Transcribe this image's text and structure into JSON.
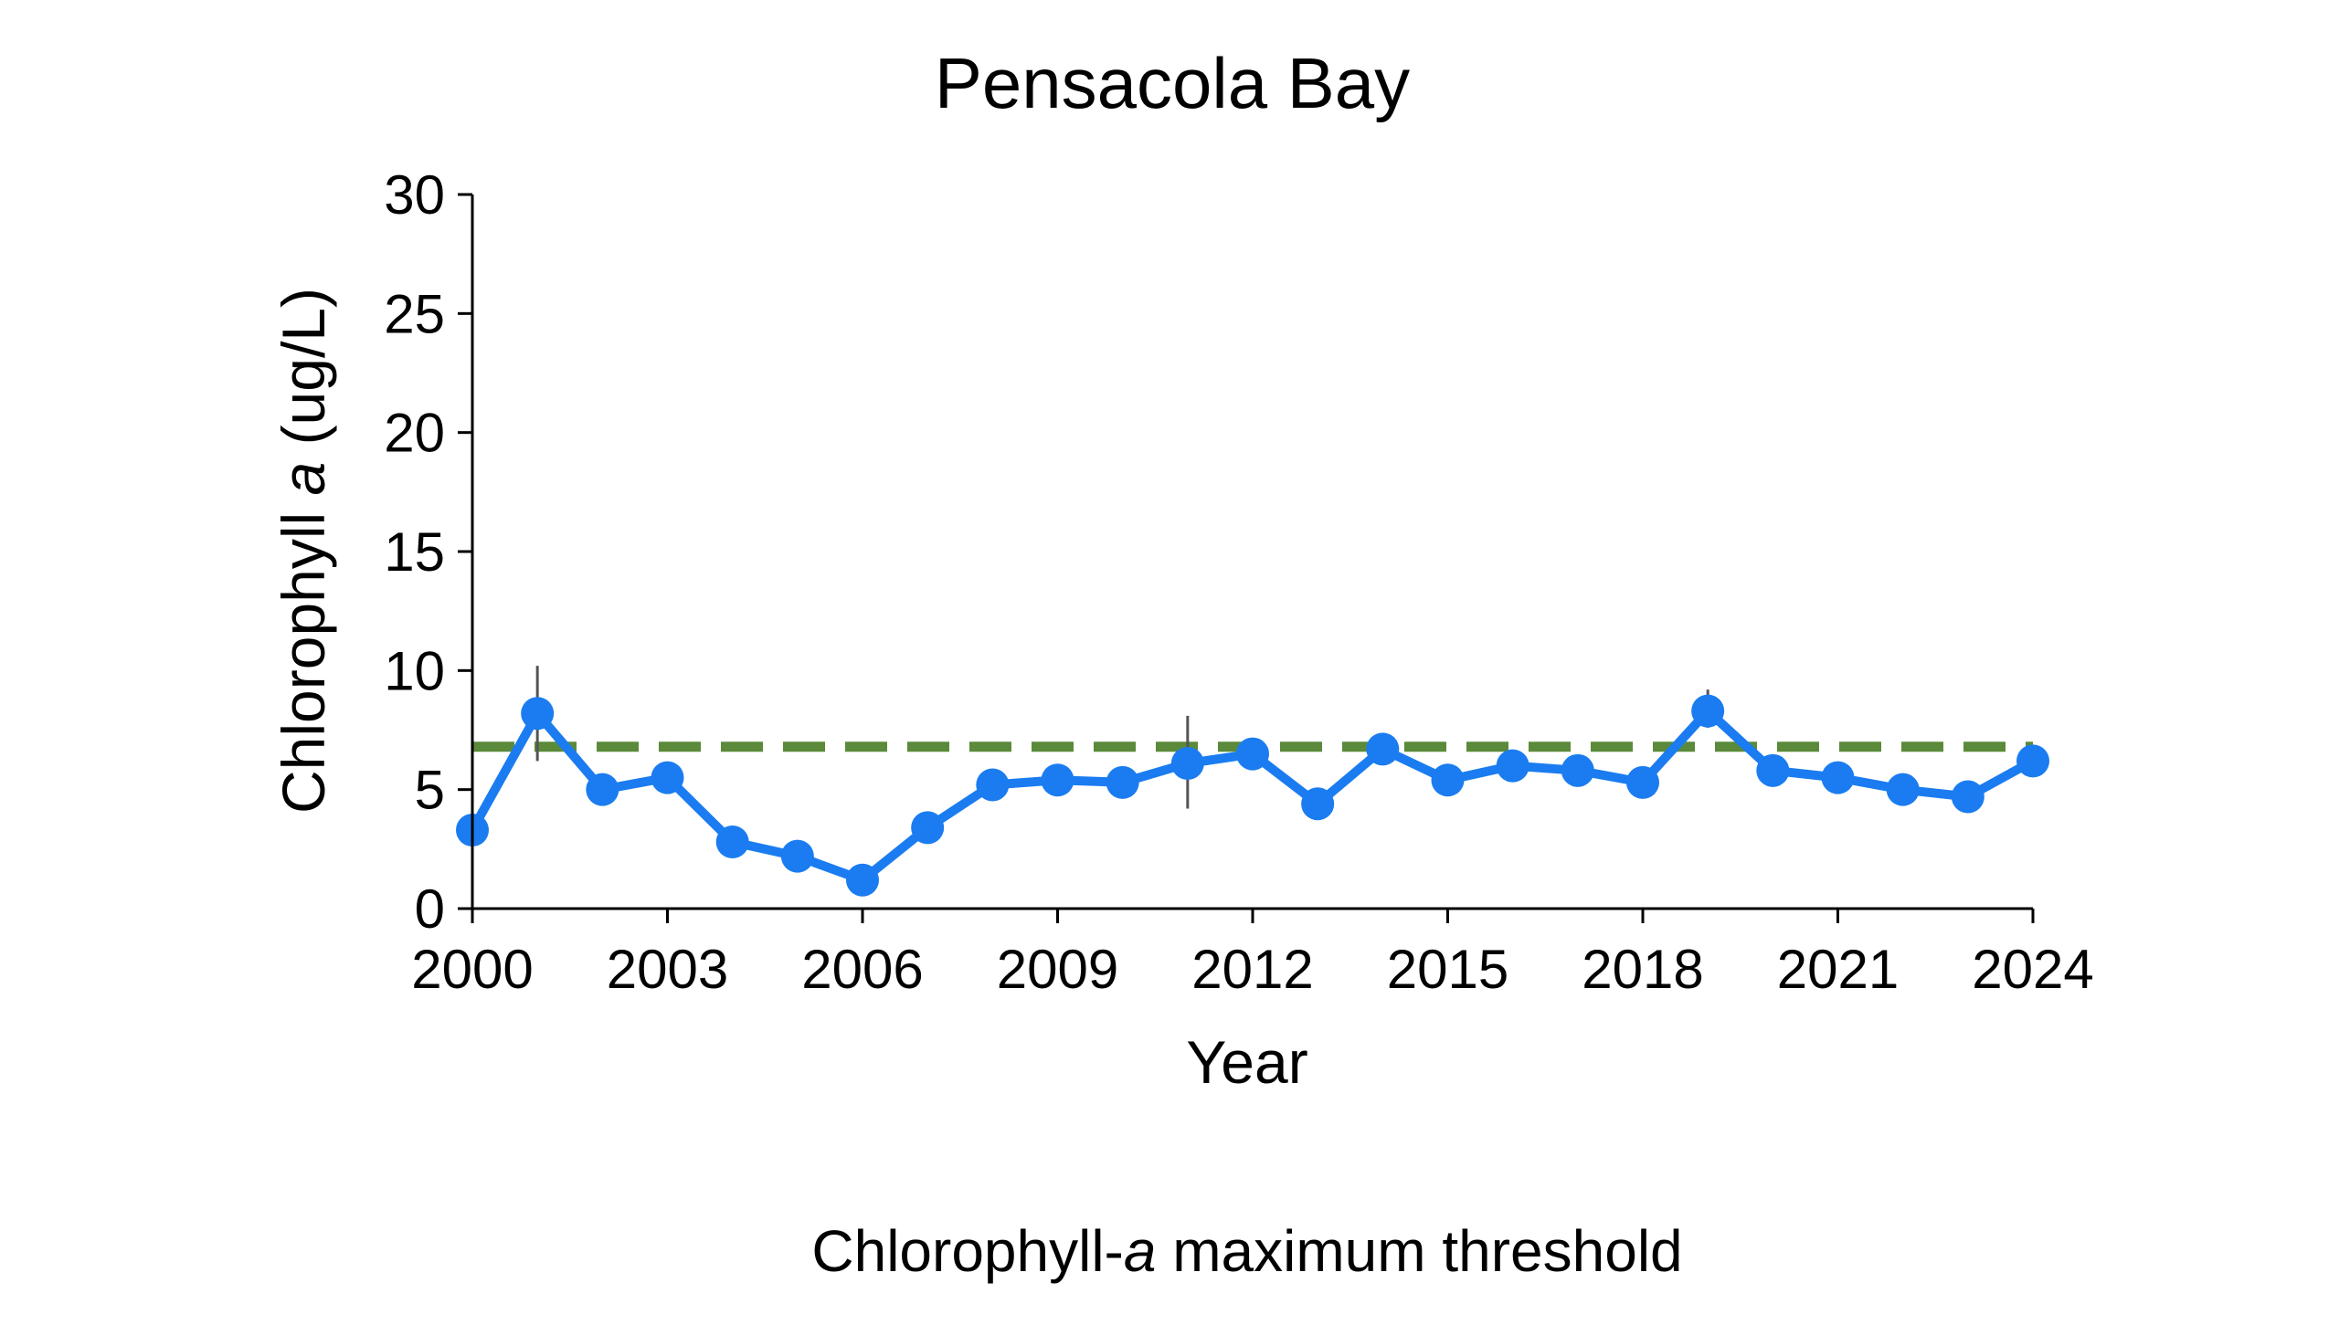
{
  "chart_data": {
    "type": "line",
    "title": "Pensacola Bay",
    "xlabel": "Year",
    "ylabel": {
      "prefix": "Chlorophyll ",
      "italic": "a",
      "suffix": " (ug/L)"
    },
    "xlim": [
      2000,
      2024
    ],
    "ylim": [
      0,
      30
    ],
    "x_ticks": [
      "2000",
      "2003",
      "2006",
      "2009",
      "2012",
      "2015",
      "2018",
      "2021",
      "2024"
    ],
    "y_ticks": [
      "0",
      "5",
      "10",
      "15",
      "20",
      "25",
      "30"
    ],
    "grid": false,
    "series": [
      {
        "color": "#1a7cf0",
        "marker": "circle",
        "points": [
          {
            "x": 2000,
            "y": 3.3
          },
          {
            "x": 2001,
            "y": 8.2,
            "err_low": 6.2,
            "err_high": 10.2
          },
          {
            "x": 2002,
            "y": 5.0
          },
          {
            "x": 2003,
            "y": 5.5
          },
          {
            "x": 2004,
            "y": 2.8
          },
          {
            "x": 2005,
            "y": 2.2
          },
          {
            "x": 2006,
            "y": 1.2
          },
          {
            "x": 2007,
            "y": 3.4
          },
          {
            "x": 2008,
            "y": 5.2
          },
          {
            "x": 2009,
            "y": 5.4
          },
          {
            "x": 2010,
            "y": 5.3
          },
          {
            "x": 2011,
            "y": 6.1,
            "err_low": 4.2,
            "err_high": 8.1
          },
          {
            "x": 2012,
            "y": 6.5
          },
          {
            "x": 2013,
            "y": 4.4
          },
          {
            "x": 2014,
            "y": 6.7
          },
          {
            "x": 2015,
            "y": 5.4
          },
          {
            "x": 2016,
            "y": 6.0
          },
          {
            "x": 2017,
            "y": 5.8
          },
          {
            "x": 2018,
            "y": 5.3
          },
          {
            "x": 2019,
            "y": 8.3,
            "err_low": 7.6,
            "err_high": 9.2
          },
          {
            "x": 2020,
            "y": 5.8
          },
          {
            "x": 2021,
            "y": 5.5
          },
          {
            "x": 2022,
            "y": 5.0
          },
          {
            "x": 2023,
            "y": 4.7
          },
          {
            "x": 2024,
            "y": 6.2
          }
        ]
      }
    ],
    "threshold": {
      "value": 6.8,
      "color": "#5a8a3a",
      "style": "dashed",
      "label": {
        "prefix": "Chlorophyll-",
        "italic": "a",
        "suffix": " maximum threshold"
      }
    },
    "legend_position": "bottom"
  }
}
